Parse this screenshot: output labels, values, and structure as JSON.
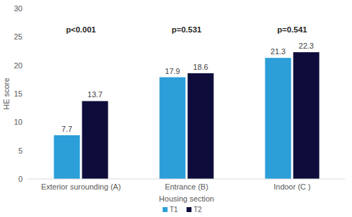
{
  "chart_data": {
    "type": "bar",
    "x_label": "Housing section",
    "y_label": "HE score",
    "categories": [
      "Exterior surounding (A)",
      "Entrance (B)",
      "Indoor (C )"
    ],
    "series": [
      {
        "name": "T1",
        "color": "#2c9fd9",
        "values": [
          7.7,
          17.9,
          21.3
        ]
      },
      {
        "name": "T2",
        "color": "#0d0c3b",
        "values": [
          13.7,
          18.6,
          22.3
        ]
      }
    ],
    "annotations": [
      "p<0.001",
      "p=0.531",
      "p=0.541"
    ],
    "ylim": [
      0,
      30
    ],
    "yticks": [
      0,
      5,
      10,
      15,
      20,
      25,
      30
    ],
    "grid": false,
    "legend": "bottom",
    "data_labels": true
  }
}
